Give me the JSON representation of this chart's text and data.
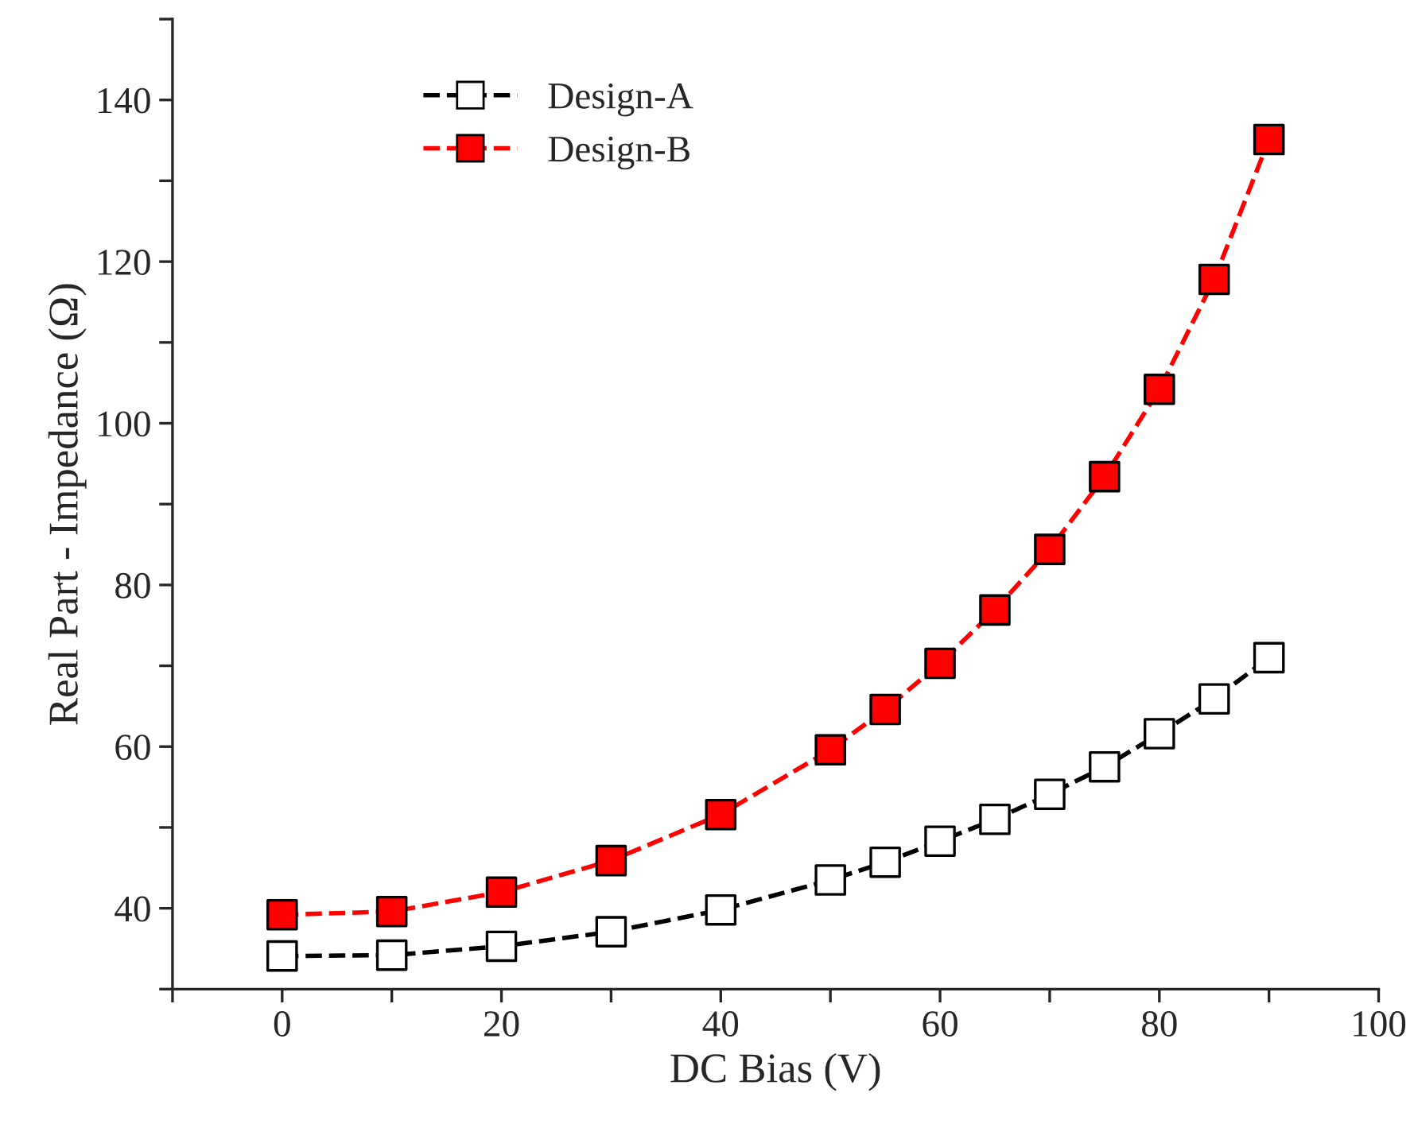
{
  "chart_data": {
    "type": "line",
    "xlabel": "DC Bias (V)",
    "ylabel": "Real Part - Impedance (Ω)",
    "x": [
      0,
      10,
      20,
      30,
      40,
      50,
      55,
      60,
      65,
      70,
      75,
      80,
      85,
      90
    ],
    "series": [
      {
        "name": "Design-A",
        "color": "#000000",
        "marker": "square",
        "values": [
          34.1,
          34.2,
          35.3,
          37.1,
          39.8,
          43.5,
          45.7,
          48.3,
          51.0,
          54.1,
          57.5,
          61.6,
          65.9,
          71.0
        ]
      },
      {
        "name": "Design-B",
        "color": "#ff0000",
        "marker": "square",
        "values": [
          39.2,
          39.6,
          42.0,
          45.9,
          51.6,
          59.6,
          64.6,
          70.3,
          76.9,
          84.4,
          93.4,
          104.2,
          117.8,
          135.1
        ]
      }
    ],
    "xlim": [
      -10,
      100
    ],
    "ylim": [
      30,
      150
    ],
    "xticks": [
      {
        "value": -10,
        "label": null
      },
      0,
      {
        "value": 10,
        "label": null
      },
      20,
      {
        "value": 30,
        "label": null
      },
      40,
      {
        "value": 50,
        "label": null
      },
      60,
      {
        "value": 70,
        "label": null
      },
      80,
      {
        "value": 90,
        "label": null
      },
      100
    ],
    "yticks": [
      {
        "value": 30,
        "label": null
      },
      40,
      {
        "value": 50,
        "label": null
      },
      60,
      {
        "value": 70,
        "label": null
      },
      80,
      {
        "value": 90,
        "label": null
      },
      100,
      {
        "value": 110,
        "label": null
      },
      120,
      {
        "value": 130,
        "label": null
      },
      140,
      {
        "value": 150,
        "label": null
      }
    ],
    "line_style": "dashed",
    "grid": false,
    "legend": "top left"
  }
}
